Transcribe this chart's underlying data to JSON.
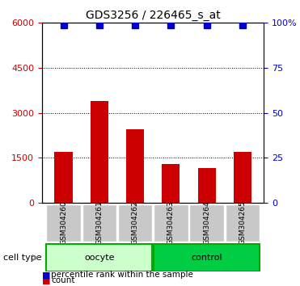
{
  "title": "GDS3256 / 226465_s_at",
  "categories": [
    "GSM304260",
    "GSM304261",
    "GSM304262",
    "GSM304263",
    "GSM304264",
    "GSM304265"
  ],
  "counts": [
    1700,
    3400,
    2450,
    1300,
    1150,
    1700
  ],
  "percentile_ranks": [
    99,
    99,
    99,
    99,
    99,
    99
  ],
  "bar_color": "#cc0000",
  "dot_color": "#0000cc",
  "left_ylim": [
    0,
    6000
  ],
  "right_ylim": [
    0,
    100
  ],
  "left_yticks": [
    0,
    1500,
    3000,
    4500,
    6000
  ],
  "right_yticks": [
    0,
    25,
    50,
    75,
    100
  ],
  "left_ycolor": "#cc0000",
  "right_ycolor": "#0000cc",
  "groups": [
    {
      "label": "oocyte",
      "indices": [
        0,
        1,
        2
      ],
      "color": "#ccffcc",
      "edge_color": "#00aa00"
    },
    {
      "label": "control",
      "indices": [
        3,
        4,
        5
      ],
      "color": "#00cc44",
      "edge_color": "#00aa00"
    }
  ],
  "cell_type_label": "cell type",
  "legend_items": [
    {
      "label": "count",
      "color": "#cc0000",
      "marker": "s"
    },
    {
      "label": "percentile rank within the sample",
      "color": "#0000cc",
      "marker": "s"
    }
  ],
  "bg_color": "#ffffff",
  "grid_color": "#000000",
  "tick_area_color": "#d3d3d3"
}
